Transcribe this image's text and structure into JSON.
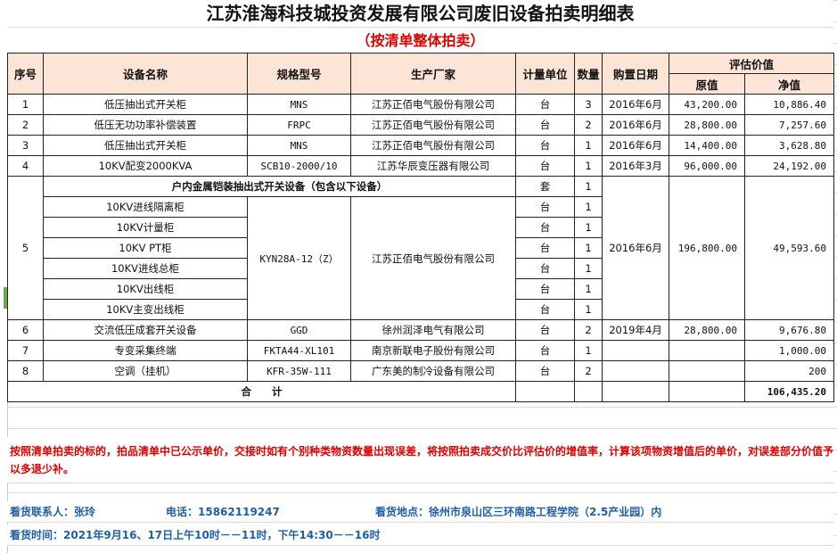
{
  "title": "江苏淮海科技城投资发展有限公司废旧设备拍卖明细表",
  "subtitle": "（按清单整体拍卖）",
  "header": {
    "seq": "序号",
    "name": "设备名称",
    "spec": "规格型号",
    "maker": "生产厂家",
    "unit": "计量单位",
    "qty": "数量",
    "date": "购置日期",
    "value": "评估价值",
    "orig": "原值",
    "net": "净值"
  },
  "rows": [
    {
      "seq": "1",
      "name": "低压抽出式开关柜",
      "spec": "MNS",
      "maker": "江苏正佰电气股份有限公司",
      "unit": "台",
      "qty": "3",
      "date": "2016年6月",
      "orig": "43,200.00",
      "net": "10,886.40"
    },
    {
      "seq": "2",
      "name": "低压无功功率补偿装置",
      "spec": "FRPC",
      "maker": "江苏正佰电气股份有限公司",
      "unit": "台",
      "qty": "2",
      "date": "2016年6月",
      "orig": "28,800.00",
      "net": "7,257.60"
    },
    {
      "seq": "3",
      "name": "低压抽出式开关柜",
      "spec": "MNS",
      "maker": "江苏正佰电气股份有限公司",
      "unit": "台",
      "qty": "1",
      "date": "2016年6月",
      "orig": "14,400.00",
      "net": "3,628.80"
    },
    {
      "seq": "4",
      "name": "10KV配变2000KVA",
      "spec": "SCB10-2000/10",
      "maker": "江苏华辰变压器有限公司",
      "unit": "台",
      "qty": "1",
      "date": "2016年3月",
      "orig": "96,000.00",
      "net": "24,192.00"
    }
  ],
  "group": {
    "seq": "5",
    "title": "户内金属铠装抽出式开关设备（包含以下设备）",
    "unit": "套",
    "qty": "1",
    "spec": "KYN28A-12（Z）",
    "maker": "江苏正佰电气股份有限公司",
    "date": "2016年6月",
    "orig": "196,800.00",
    "net": "49,593.60",
    "items": [
      {
        "name": "10KV进线隔离柜",
        "unit": "台",
        "qty": "1"
      },
      {
        "name": "10KV计量柜",
        "unit": "台",
        "qty": "1"
      },
      {
        "name": "10KV PT柜",
        "unit": "台",
        "qty": "1"
      },
      {
        "name": "10KV进线总柜",
        "unit": "台",
        "qty": "1"
      },
      {
        "name": "10KV出线柜",
        "unit": "台",
        "qty": "1"
      },
      {
        "name": "10KV主变出线柜",
        "unit": "台",
        "qty": "1"
      }
    ]
  },
  "rows2": [
    {
      "seq": "6",
      "name": "交流低压成套开关设备",
      "spec": "GGD",
      "maker": "徐州润泽电气有限公司",
      "unit": "台",
      "qty": "2",
      "date": "2019年4月",
      "orig": "28,800.00",
      "net": "9,676.80"
    },
    {
      "seq": "7",
      "name": "专变采集终端",
      "spec": "FKTA44-XL101",
      "maker": "南京新联电子股份有限公司",
      "unit": "台",
      "qty": "1",
      "date": "",
      "orig": "",
      "net": "1,000.00"
    },
    {
      "seq": "8",
      "name": "空调（挂机）",
      "spec": "KFR-35W-111",
      "maker": "广东美的制冷设备有限公司",
      "unit": "台",
      "qty": "2",
      "date": "",
      "orig": "",
      "net": "200"
    }
  ],
  "total": {
    "label": "合　　计",
    "net": "106,435.20"
  },
  "note": "按照清单拍卖的标的，拍品清单中已公示单价，交接时如有个别种类物资数量出现误差，将按照拍卖成交价比评估价的增值率，计算该项物资增值后的单价，对误差部分价值予以多退少补。",
  "contact": {
    "person": "看货联系人：张玲",
    "phone": "电话：15862119247",
    "place": "看货地点：徐州市泉山区三环南路工程学院（2.5产业园）内",
    "time": "看货时间：2021年9月16、17日上午10时－－11时，下午14:30－－16时"
  },
  "colors": {
    "header_fill": "#fce4d6",
    "note_red": "#e00000",
    "info_blue": "#1f5fa8"
  }
}
